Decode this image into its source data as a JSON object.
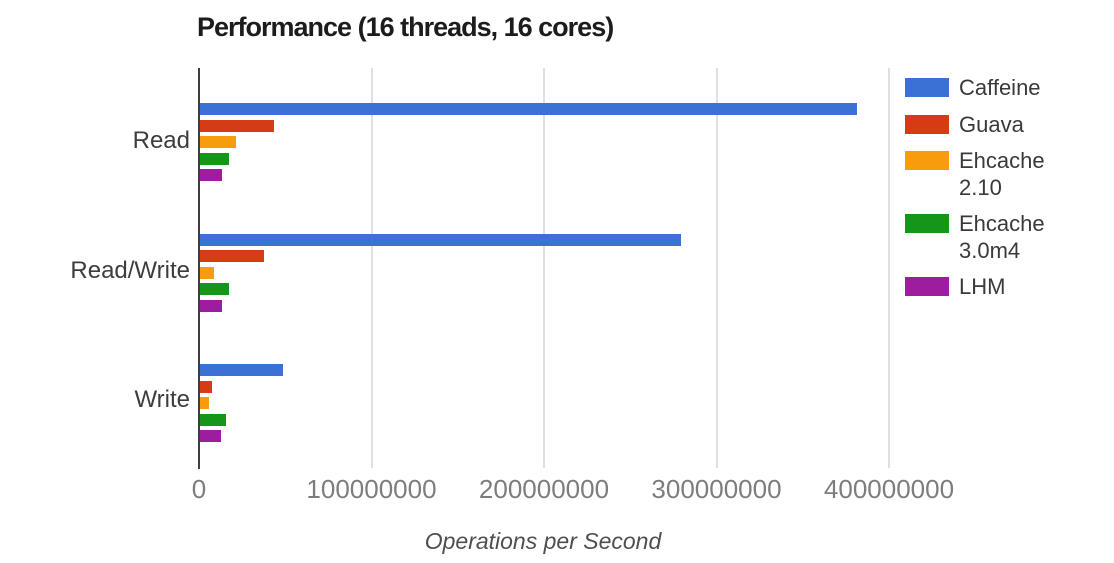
{
  "title": "Performance (16 threads, 16 cores)",
  "chart_data": {
    "type": "bar",
    "orientation": "horizontal",
    "title": "Performance (16 threads, 16 cores)",
    "categories": [
      "Read",
      "Read/Write",
      "Write"
    ],
    "series": [
      {
        "name": "Caffeine",
        "color": "#3b70d4",
        "values": [
          381000000,
          279000000,
          48000000
        ]
      },
      {
        "name": "Guava",
        "color": "#d53b14",
        "values": [
          43000000,
          37000000,
          7000000
        ]
      },
      {
        "name": "Ehcache 2.10",
        "color": "#f79c0d",
        "values": [
          21000000,
          8000000,
          5000000
        ]
      },
      {
        "name": "Ehcache 3.0m4",
        "color": "#159618",
        "values": [
          17000000,
          17000000,
          15000000
        ]
      },
      {
        "name": "LHM",
        "color": "#9e1c9e",
        "values": [
          13000000,
          13000000,
          12000000
        ]
      }
    ],
    "xlabel": "Operations per Second",
    "x_ticks": [
      0,
      100000000,
      200000000,
      300000000,
      400000000
    ],
    "x_tick_labels": [
      "0",
      "100000000",
      "200000000",
      "300000000",
      "400000000"
    ],
    "xlim": [
      0,
      400000000
    ],
    "grid": true,
    "legend_position": "right",
    "axis_color": "#3f3f3f",
    "gridline_color": "#e0e0e0"
  }
}
